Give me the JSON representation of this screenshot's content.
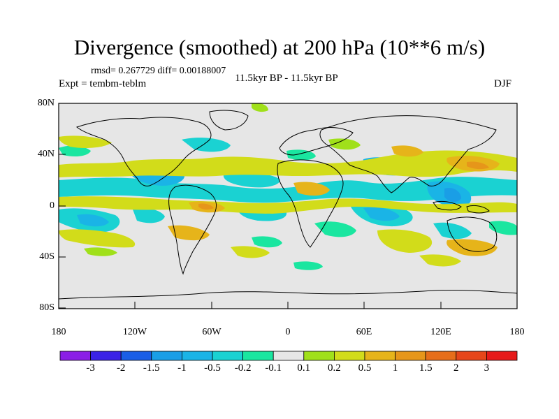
{
  "title": "Divergence (smoothed) at 200 hPa (10**6 m/s)",
  "stats": "rmsd= 0.267729 diff= 0.00188007",
  "experiment": "Expt = tembm-teblm",
  "period": "11.5kyr BP - 11.5kyr BP",
  "season": "DJF",
  "lat_labels": [
    "80N",
    "40N",
    "0",
    "40S",
    "80S"
  ],
  "lon_labels": [
    "180",
    "120W",
    "60W",
    "0",
    "60E",
    "120E",
    "180"
  ],
  "colorbar": {
    "labels": [
      "-3",
      "-2",
      "-1.5",
      "-1",
      "-0.5",
      "-0.2",
      "-0.1",
      "0.1",
      "0.2",
      "0.5",
      "1",
      "1.5",
      "2",
      "3"
    ],
    "colors": [
      "#8b1fe6",
      "#3b22e6",
      "#1a5ee6",
      "#1a9ee6",
      "#1ab4e6",
      "#1ad2d2",
      "#1ae6a0",
      "#e6e6e6",
      "#a0e01a",
      "#d2dc1a",
      "#e6b41a",
      "#e6961a",
      "#e66e1a",
      "#e6461a",
      "#e61a1a"
    ]
  },
  "colors": {
    "background": "#e6e6e6",
    "pos1": "#a0e01a",
    "pos2": "#d2dc1a",
    "pos3": "#e6b41a",
    "pos4": "#e6961a",
    "neg1": "#1ae6a0",
    "neg2": "#1ad2d2",
    "neg3": "#1ab4e6",
    "neg4": "#1a9ee6"
  }
}
